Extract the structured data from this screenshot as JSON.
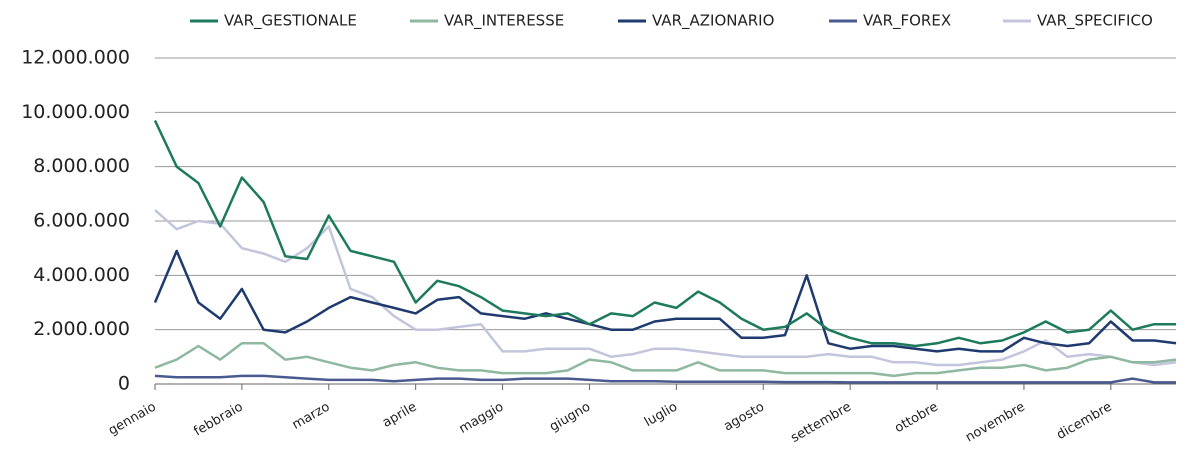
{
  "chart_data": {
    "type": "line",
    "categories": [
      "gennaio",
      null,
      null,
      null,
      "febbraio",
      null,
      null,
      null,
      "marzo",
      null,
      null,
      null,
      "aprile",
      null,
      null,
      null,
      "maggio",
      null,
      null,
      null,
      "giugno",
      null,
      null,
      null,
      "luglio",
      null,
      null,
      null,
      "agosto",
      null,
      null,
      null,
      "settembre",
      null,
      null,
      null,
      "ottobre",
      null,
      null,
      null,
      "novembre",
      null,
      null,
      null,
      "dicembre",
      null,
      null,
      null
    ],
    "series": [
      {
        "name": "VAR_GESTIONALE",
        "color": "#1e7a5c",
        "values": [
          9700000,
          8000000,
          7400000,
          5800000,
          7600000,
          6700000,
          4700000,
          4600000,
          6200000,
          4900000,
          4700000,
          4500000,
          3000000,
          3800000,
          3600000,
          3200000,
          2700000,
          2600000,
          2500000,
          2600000,
          2200000,
          2600000,
          2500000,
          3000000,
          2800000,
          3400000,
          3000000,
          2400000,
          2000000,
          2100000,
          2600000,
          2000000,
          1700000,
          1500000,
          1500000,
          1400000,
          1500000,
          1700000,
          1500000,
          1600000,
          1900000,
          2300000,
          1900000,
          2000000,
          2700000,
          2000000,
          2200000,
          2200000
        ]
      },
      {
        "name": "VAR_INTERESSE",
        "color": "#8fb8a0",
        "values": [
          600000,
          900000,
          1400000,
          900000,
          1500000,
          1500000,
          900000,
          1000000,
          800000,
          600000,
          500000,
          700000,
          800000,
          600000,
          500000,
          500000,
          400000,
          400000,
          400000,
          500000,
          900000,
          800000,
          500000,
          500000,
          500000,
          800000,
          500000,
          500000,
          500000,
          400000,
          400000,
          400000,
          400000,
          400000,
          300000,
          400000,
          400000,
          500000,
          600000,
          600000,
          700000,
          500000,
          600000,
          900000,
          1000000,
          800000,
          800000,
          900000
        ]
      },
      {
        "name": "VAR_AZIONARIO",
        "color": "#1f3a6e",
        "values": [
          3000000,
          4900000,
          3000000,
          2400000,
          3500000,
          2000000,
          1900000,
          2300000,
          2800000,
          3200000,
          3000000,
          2800000,
          2600000,
          3100000,
          3200000,
          2600000,
          2500000,
          2400000,
          2600000,
          2400000,
          2200000,
          2000000,
          2000000,
          2300000,
          2400000,
          2400000,
          2400000,
          1700000,
          1700000,
          1800000,
          4000000,
          1500000,
          1300000,
          1400000,
          1400000,
          1300000,
          1200000,
          1300000,
          1200000,
          1200000,
          1700000,
          1500000,
          1400000,
          1500000,
          2300000,
          1600000,
          1600000,
          1500000
        ]
      },
      {
        "name": "VAR_FOREX",
        "color": "#4a5a90",
        "values": [
          300000,
          250000,
          250000,
          250000,
          300000,
          300000,
          250000,
          200000,
          150000,
          150000,
          150000,
          100000,
          150000,
          200000,
          200000,
          150000,
          150000,
          200000,
          200000,
          200000,
          150000,
          100000,
          100000,
          100000,
          80000,
          80000,
          80000,
          80000,
          80000,
          70000,
          70000,
          70000,
          60000,
          60000,
          60000,
          60000,
          60000,
          60000,
          60000,
          60000,
          60000,
          60000,
          60000,
          60000,
          60000,
          200000,
          60000,
          60000
        ]
      },
      {
        "name": "VAR_SPECIFICO",
        "color": "#c3c5dc",
        "values": [
          6400000,
          5700000,
          6000000,
          5900000,
          5000000,
          4800000,
          4500000,
          5000000,
          5800000,
          3500000,
          3200000,
          2500000,
          2000000,
          2000000,
          2100000,
          2200000,
          1200000,
          1200000,
          1300000,
          1300000,
          1300000,
          1000000,
          1100000,
          1300000,
          1300000,
          1200000,
          1100000,
          1000000,
          1000000,
          1000000,
          1000000,
          1100000,
          1000000,
          1000000,
          800000,
          800000,
          700000,
          700000,
          800000,
          900000,
          1200000,
          1600000,
          1000000,
          1100000,
          1000000,
          800000,
          700000,
          800000
        ]
      }
    ],
    "ylim": [
      0,
      12000000
    ],
    "yticks": [
      0,
      {
        "value": 2000000,
        "label": "2.000.000"
      },
      {
        "value": 4000000,
        "label": "4.000.000"
      },
      {
        "value": 6000000,
        "label": "6.000.000"
      },
      {
        "value": 8000000,
        "label": "8.000.000"
      },
      {
        "value": 10000000,
        "label": "10.000.000"
      },
      {
        "value": 12000000,
        "label": "12.000.000"
      }
    ],
    "grid": true,
    "legend": "top"
  }
}
